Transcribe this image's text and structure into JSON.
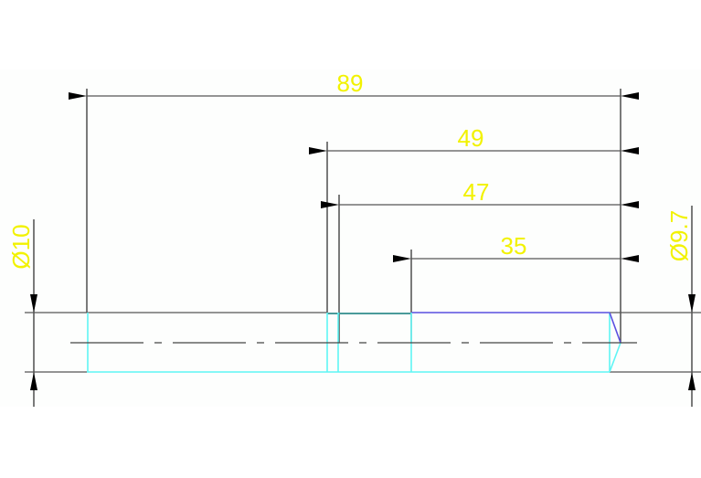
{
  "drawing": {
    "dimensions": {
      "overall_length": "89",
      "length_49": "49",
      "length_47": "47",
      "length_35": "35",
      "diameter_left": "Ø10",
      "diameter_right": "Ø9.7"
    },
    "colors": {
      "background": "#fdfefd",
      "dimension_text": "#f2f200",
      "dimension_lines": "#3a3a3a",
      "outline_cyan": "#5ff5f5",
      "outline_blue": "#5a4fe0",
      "outline_teal": "#4a9a9a"
    }
  }
}
